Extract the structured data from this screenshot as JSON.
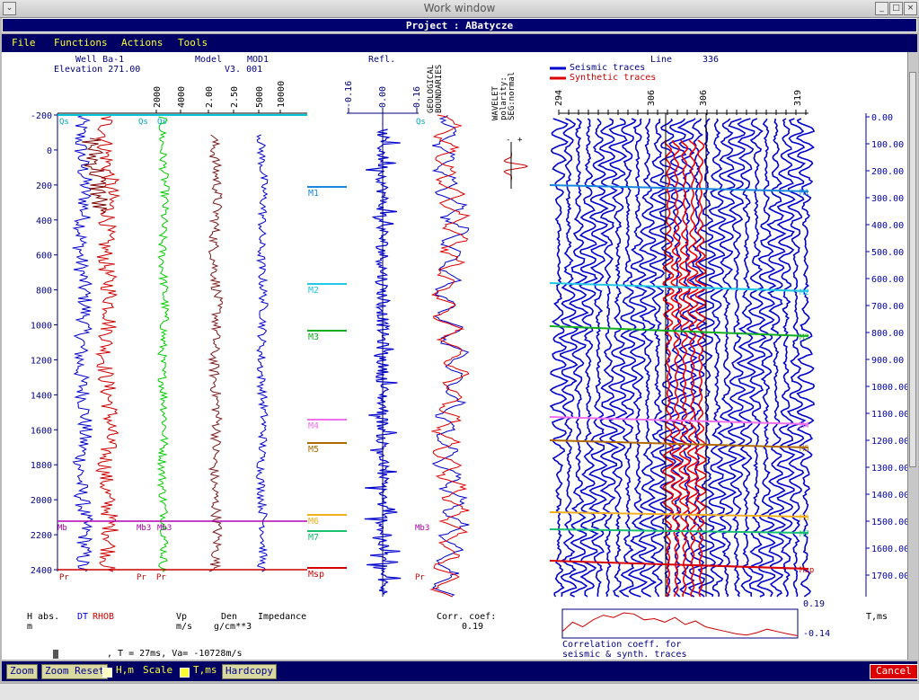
{
  "window": {
    "title": "Work window",
    "project_label": "Project : ABatycze"
  },
  "menu": [
    "File",
    "Functions",
    "Actions",
    "Tools"
  ],
  "header": {
    "well": "Well Ba-1",
    "elevation": "Elevation 271.00",
    "model_label": "Model",
    "model_value": "MOD1",
    "version": "V3. 001",
    "refl": "Refl.",
    "wavelet_lines": [
      "WAVELET",
      "polarity:",
      "SEG:normal"
    ],
    "geo_lines": [
      "GEOLOGICAL",
      "BOUNDARIES"
    ],
    "line_label": "Line",
    "line_value": "336",
    "legend_seismic": "Seismic traces",
    "legend_synthetic": "Synthetic traces"
  },
  "depth_ticks": [
    "-200",
    "0",
    "200",
    "400",
    "600",
    "800",
    "1000",
    "1200",
    "1400",
    "1600",
    "1800",
    "2000",
    "2200",
    "2400"
  ],
  "log_scale_labels": [
    "2000",
    "4000",
    "2.00",
    "2.50",
    "5000",
    "10000"
  ],
  "refl_scale": [
    "-0.16",
    "0.00",
    "0.16"
  ],
  "trace_labels": [
    "294",
    "306",
    "306",
    "319"
  ],
  "time_ticks": [
    "0.00",
    "100.00",
    "200.00",
    "300.00",
    "400.00",
    "500.00",
    "600.00",
    "700.00",
    "800.00",
    "900.00",
    "1000.00",
    "1100.00",
    "1200.00",
    "1300.00",
    "1400.00",
    "1500.00",
    "1600.00",
    "1700.00"
  ],
  "horizons": [
    {
      "name": "M1",
      "color": "#1a88e0"
    },
    {
      "name": "M2",
      "color": "#22c8e8"
    },
    {
      "name": "M3",
      "color": "#12b020"
    },
    {
      "name": "M4",
      "color": "#f070f0"
    },
    {
      "name": "M5",
      "color": "#b06a00"
    },
    {
      "name": "M6",
      "color": "#f0b020"
    },
    {
      "name": "M7",
      "color": "#18c070"
    },
    {
      "name": "Msp",
      "color": "#d80000"
    }
  ],
  "markers": {
    "qs": "Qs",
    "pr": "Pr",
    "mb3": "Mb3",
    "mb": "Mb"
  },
  "polarity_signs": [
    "-",
    "+"
  ],
  "footer": {
    "h_abs": "H abs.",
    "h_unit": "m",
    "dt": "DT",
    "rhob": "RHOB",
    "vp": "Vp",
    "vp_unit": "m/s",
    "den": "Den",
    "den_unit": "g/cm**3",
    "impedance": "Impedance",
    "corr_label": "Corr. coef:",
    "corr_value": "0.19",
    "status": ", T =     27ms, Va= -10728m/s",
    "tms": "T,ms",
    "corr_max": "0.19",
    "corr_min": "-0.14",
    "corr_caption_1": "Correlation coeff. for",
    "corr_caption_2": "seismic & synth. traces"
  },
  "toolbar": {
    "zoom": "Zoom",
    "zoom_reset": "Zoom Reset",
    "hm": "H,m",
    "scale": "Scale",
    "tms": "T,ms",
    "hardcopy": "Hardcopy",
    "cancel": "Cancel"
  },
  "colors": {
    "blue": "#0000cc",
    "red": "#cc0000",
    "green": "#00cc00",
    "brown": "#7a1a1a",
    "magenta": "#b000b0",
    "cyan": "#00c8d8"
  }
}
